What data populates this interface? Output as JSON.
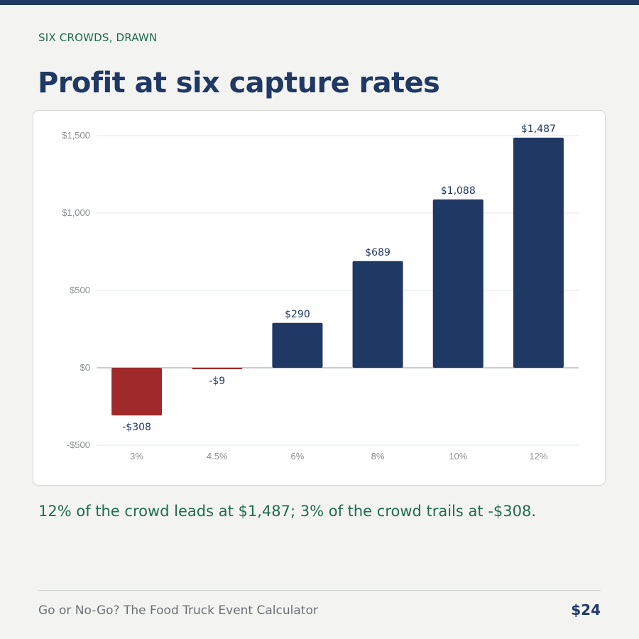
{
  "header": {
    "eyebrow": "SIX CROWDS, DRAWN",
    "title": "Profit at six capture rates"
  },
  "caption": "12% of the crowd leads at $1,487; 3% of the crowd trails at -$308.",
  "footer": {
    "book_title": "Go or No-Go? The Food Truck Event Calculator",
    "price": "$24"
  },
  "colors": {
    "positive": "#1f3864",
    "negative": "#a0292b",
    "accent_text": "#1e6b50"
  },
  "chart_data": {
    "type": "bar",
    "categories": [
      "3%",
      "4.5%",
      "6%",
      "8%",
      "10%",
      "12%"
    ],
    "values": [
      -308,
      -9,
      290,
      689,
      1088,
      1487
    ],
    "data_labels": [
      "-$308",
      "-$9",
      "$290",
      "$689",
      "$1,088",
      "$1,487"
    ],
    "y_ticks": [
      -500,
      0,
      500,
      1000,
      1500
    ],
    "y_tick_labels": [
      "-$500",
      "$0",
      "$500",
      "$1,000",
      "$1,500"
    ],
    "ylim": [
      -500,
      1500
    ],
    "grid": true,
    "title": "",
    "xlabel": "",
    "ylabel": ""
  }
}
